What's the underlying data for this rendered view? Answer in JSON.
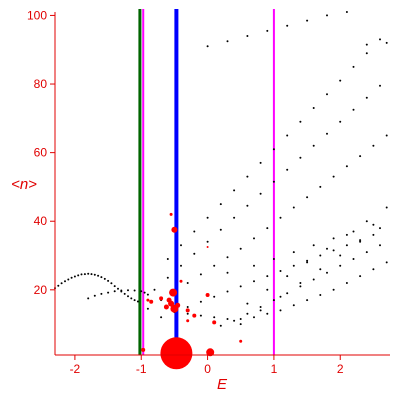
{
  "chart_data": {
    "type": "scatter",
    "title": "",
    "xlabel": "E",
    "ylabel": "<n>",
    "xlim": [
      -2.3,
      2.75
    ],
    "ylim": [
      1,
      101
    ],
    "grid": false,
    "colors": {
      "axes": "#e00000",
      "points": "#000000",
      "red_points": "#ff0000",
      "green_line": "#006400",
      "magenta_line": "#ff00ff",
      "blue_line": "#0000ff"
    },
    "x_ticks": [
      {
        "value": -2,
        "label": "-2"
      },
      {
        "value": -1,
        "label": "-1"
      },
      {
        "value": 0,
        "label": "0"
      },
      {
        "value": 1,
        "label": "1"
      },
      {
        "value": 2,
        "label": "2"
      }
    ],
    "y_ticks": [
      {
        "value": 20,
        "label": "20"
      },
      {
        "value": 40,
        "label": "40"
      },
      {
        "value": 60,
        "label": "60"
      },
      {
        "value": 80,
        "label": "80"
      },
      {
        "value": 100,
        "label": "100"
      }
    ],
    "vertical_lines": [
      {
        "x": -1.02,
        "color": "#006400",
        "style": "thick"
      },
      {
        "x": -0.97,
        "color": "#ff00ff",
        "style": "thin"
      },
      {
        "x": -0.47,
        "color": "#0000ff",
        "style": "thick"
      },
      {
        "x": 1.0,
        "color": "#ff00ff",
        "style": "thin"
      }
    ],
    "series": [
      {
        "type": "scatter-black",
        "x": [
          -2.3,
          -2.25,
          -2.2,
          -2.15,
          -2.1,
          -2.05,
          -2.0,
          -1.95,
          -1.9,
          -1.85,
          -1.8,
          -1.75,
          -1.7,
          -1.65,
          -1.6,
          -1.55,
          -1.5,
          -1.45,
          -1.4,
          -1.35,
          -1.3,
          -1.25,
          -1.2,
          -1.15,
          -1.1,
          -1.05,
          -1.8,
          -1.7,
          -1.6,
          -1.5,
          -1.4,
          -1.3,
          -1.2,
          -1.1,
          -1.0,
          -0.95,
          -0.9,
          -0.9,
          -0.7,
          -0.5,
          -0.3,
          -0.1,
          0.1,
          0.3,
          0.5,
          0.7,
          0.9,
          1.1,
          1.3,
          1.5,
          1.7,
          1.9,
          2.1,
          2.3,
          2.5,
          2.7,
          -0.8,
          -0.6,
          -0.4,
          -0.2,
          0.0,
          0.2,
          0.4,
          0.6,
          0.8,
          1.0,
          1.2,
          1.4,
          1.6,
          1.8,
          2.0,
          2.2,
          2.4,
          2.6,
          -0.6,
          -0.4,
          -0.2,
          0.0,
          0.2,
          0.4,
          0.6,
          0.8,
          1.0,
          1.2,
          1.4,
          1.6,
          1.8,
          2.0,
          2.2,
          2.4,
          2.6,
          -0.5,
          -0.3,
          -0.1,
          0.1,
          0.3,
          0.5,
          0.7,
          0.9,
          1.1,
          1.3,
          1.5,
          1.7,
          1.9,
          2.1,
          2.3,
          2.5,
          2.7,
          -0.7,
          -0.5,
          -0.3,
          -0.1,
          0.1,
          0.3,
          0.5,
          0.7,
          0.9,
          1.1,
          1.3,
          1.5,
          1.7,
          1.9,
          2.1,
          2.3,
          2.5,
          0.2,
          0.4,
          0.6,
          0.8,
          1.0,
          1.2,
          1.4,
          1.6,
          1.8,
          2.0,
          2.2,
          2.4,
          2.6,
          0.5,
          0.8,
          1.1,
          1.4,
          1.7,
          2.0,
          2.3,
          2.6,
          0.6,
          0.9,
          1.2,
          1.5,
          1.8,
          2.1,
          2.4,
          2.7,
          0.3,
          0.7,
          1.0,
          1.3,
          1.6,
          1.9,
          2.2,
          2.5,
          0.0,
          0.3,
          0.6,
          0.9,
          1.2,
          1.5,
          1.8,
          2.1,
          2.4,
          2.7
        ],
        "y": [
          20.5,
          21.2,
          21.9,
          22.5,
          23.0,
          23.5,
          23.9,
          24.2,
          24.5,
          24.6,
          24.7,
          24.6,
          24.4,
          24.1,
          23.7,
          23.2,
          22.6,
          21.9,
          21.1,
          20.3,
          19.5,
          18.8,
          18.1,
          17.5,
          17.0,
          16.6,
          17.5,
          18.3,
          18.8,
          19.2,
          19.6,
          19.8,
          19.9,
          19.8,
          19.6,
          19.2,
          18.6,
          14.5,
          17.0,
          19.5,
          22.0,
          24.5,
          27.0,
          29.5,
          32.0,
          35.0,
          38.0,
          41.0,
          44.0,
          47.0,
          50.0,
          53.0,
          56.0,
          59.0,
          62.0,
          65.0,
          20.0,
          23.5,
          27.0,
          30.5,
          34.0,
          37.5,
          41.0,
          44.5,
          48.0,
          51.5,
          55.0,
          58.5,
          62.0,
          65.5,
          69.0,
          72.5,
          76.0,
          79.5,
          29.0,
          33.0,
          37.0,
          41.0,
          45.0,
          49.0,
          53.0,
          57.0,
          61.0,
          65.0,
          69.0,
          73.0,
          77.0,
          81.0,
          85.0,
          89.0,
          93.0,
          14.0,
          13.0,
          12.5,
          12.0,
          11.5,
          11.5,
          12.0,
          13.0,
          14.0,
          15.5,
          17.0,
          18.5,
          20.0,
          22.0,
          24.0,
          26.0,
          28.0,
          12.0,
          13.5,
          15.0,
          16.5,
          18.0,
          19.5,
          21.0,
          22.5,
          24.0,
          25.5,
          27.0,
          28.5,
          30.0,
          31.5,
          33.0,
          34.5,
          36.0,
          9.5,
          11.0,
          13.0,
          15.0,
          17.0,
          19.0,
          21.0,
          23.0,
          25.0,
          27.0,
          29.0,
          31.0,
          33.0,
          10.0,
          14.0,
          18.0,
          22.0,
          26.0,
          30.0,
          34.0,
          38.0,
          16.0,
          20.0,
          24.0,
          28.0,
          32.0,
          36.0,
          40.0,
          44.0,
          25.0,
          27.0,
          29.0,
          31.0,
          33.0,
          35.0,
          37.0,
          39.0,
          91.0,
          92.5,
          94.0,
          95.5,
          97.0,
          98.5,
          100.0,
          101.0,
          91.5,
          92.0
        ]
      },
      {
        "type": "scatter-red",
        "x": [
          -0.47,
          0.04,
          -0.52,
          -0.55,
          -0.58,
          -0.62,
          -0.5,
          -0.45,
          -0.3,
          -0.2,
          0.0,
          0.1,
          -0.7,
          -0.85,
          -0.9,
          -0.55,
          -0.5,
          0.0,
          -0.4,
          -0.3,
          0.5,
          -0.97
        ],
        "y": [
          1.5,
          1.8,
          19.2,
          16.0,
          17.0,
          15.0,
          14.5,
          15.5,
          14.0,
          12.5,
          18.5,
          10.5,
          17.5,
          16.5,
          17.0,
          42.0,
          37.5,
          32.5,
          22.5,
          11.0,
          5.0,
          2.5
        ],
        "sizes": [
          16,
          4,
          4,
          3,
          2.5,
          2.5,
          4,
          2.5,
          2,
          2,
          2,
          2,
          2,
          2,
          1.5,
          1.5,
          3,
          1,
          1.5,
          1.5,
          1.5,
          2
        ]
      }
    ]
  }
}
